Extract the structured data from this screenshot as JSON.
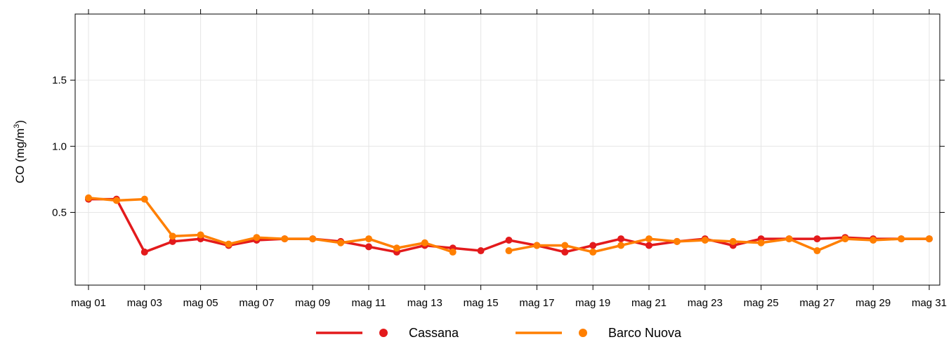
{
  "chart_data": {
    "type": "line",
    "title": "",
    "xlabel": "",
    "ylabel": {
      "base": "CO (mg/m",
      "sup": "3",
      "close": ")"
    },
    "ylim": [
      -0.05,
      2.0
    ],
    "yticks": [
      0.5,
      1.0,
      1.5
    ],
    "ytick_labels": [
      "0.5",
      "1.0",
      "1.5"
    ],
    "x": [
      "mag 01",
      "mag 02",
      "mag 03",
      "mag 04",
      "mag 05",
      "mag 06",
      "mag 07",
      "mag 08",
      "mag 09",
      "mag 10",
      "mag 11",
      "mag 12",
      "mag 13",
      "mag 14",
      "mag 15",
      "mag 16",
      "mag 17",
      "mag 18",
      "mag 19",
      "mag 20",
      "mag 21",
      "mag 22",
      "mag 23",
      "mag 24",
      "mag 25",
      "mag 26",
      "mag 27",
      "mag 28",
      "mag 29",
      "mag 30",
      "mag 31"
    ],
    "xtick_labels": [
      "mag 01",
      "mag 03",
      "mag 05",
      "mag 07",
      "mag 09",
      "mag 11",
      "mag 13",
      "mag 15",
      "mag 17",
      "mag 19",
      "mag 21",
      "mag 23",
      "mag 25",
      "mag 27",
      "mag 29",
      "mag 31"
    ],
    "grid": true,
    "legend_position": "bottom",
    "series": [
      {
        "name": "Cassana",
        "color": "#e31a1c",
        "values": [
          0.6,
          0.6,
          0.2,
          0.28,
          0.3,
          0.25,
          0.29,
          0.3,
          0.3,
          0.28,
          0.24,
          0.2,
          0.25,
          0.23,
          0.21,
          0.29,
          0.25,
          0.2,
          0.25,
          0.3,
          0.25,
          0.28,
          0.3,
          0.25,
          0.3,
          0.3,
          0.3,
          0.31,
          0.3,
          0.3,
          0.3
        ]
      },
      {
        "name": "Barco Nuova",
        "color": "#ff7f00",
        "values": [
          0.61,
          0.59,
          0.6,
          0.32,
          0.33,
          0.26,
          0.31,
          0.3,
          0.3,
          0.27,
          0.3,
          0.23,
          0.27,
          0.2,
          null,
          0.21,
          0.25,
          0.25,
          0.2,
          0.25,
          0.3,
          0.28,
          0.29,
          0.28,
          0.27,
          0.3,
          0.21,
          0.3,
          0.29,
          0.3,
          0.3
        ]
      }
    ]
  }
}
